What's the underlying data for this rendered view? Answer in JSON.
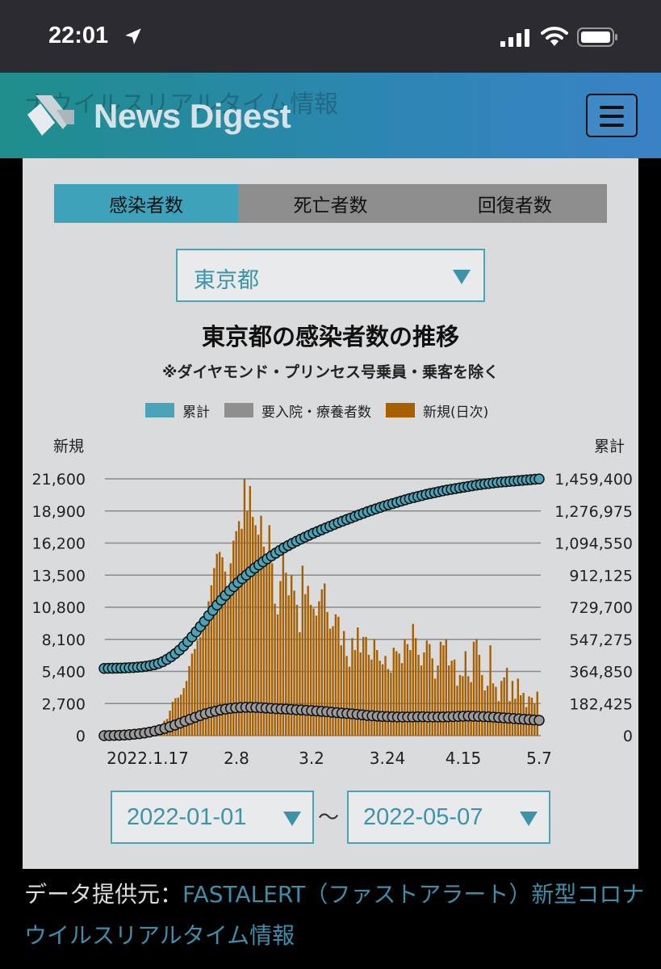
{
  "status_bar": {
    "time": "22:01",
    "icons": [
      "location-arrow-icon",
      "cellular-signal-icon",
      "wifi-icon",
      "battery-icon"
    ]
  },
  "header": {
    "ghost_text": "ナウイルスリアルタイム情報",
    "logo_text": "News Digest",
    "menu_icon": "hamburger-menu-icon"
  },
  "tabs": [
    {
      "label": "感染者数",
      "active": true
    },
    {
      "label": "死亡者数",
      "active": false
    },
    {
      "label": "回復者数",
      "active": false
    }
  ],
  "prefecture_select": {
    "value": "東京都"
  },
  "chart_header": {
    "title": "東京都の感染者数の推移",
    "subtitle": "※ダイヤモンド・プリンセス号乗員・乗客を除く"
  },
  "legend": [
    {
      "label": "累計",
      "color": "#4aa3b6"
    },
    {
      "label": "要入院・療養者数",
      "color": "#8f8f8f"
    },
    {
      "label": "新規(日次)",
      "color": "#a85f00"
    }
  ],
  "axis": {
    "left_title": "新規",
    "right_title": "累計",
    "left_ticks": [
      "0",
      "2,700",
      "5,400",
      "8,100",
      "10,800",
      "13,500",
      "16,200",
      "18,900",
      "21,600"
    ],
    "right_ticks": [
      "0",
      "182,425",
      "364,850",
      "547,275",
      "729,700",
      "912,125",
      "1,094,550",
      "1,276,975",
      "1,459,400"
    ],
    "x_ticks": [
      "2022.1.17",
      "2.8",
      "3.2",
      "3.24",
      "4.15",
      "5.7"
    ]
  },
  "chart_data": {
    "type": "bar",
    "title": "東京都の感染者数の推移",
    "subtitle": "※ダイヤモンド・プリンセス号乗員・乗客を除く",
    "x_range": [
      "2022-01-01",
      "2022-05-07"
    ],
    "x_tick_labels": [
      "2022.1.17",
      "2.8",
      "3.2",
      "3.24",
      "4.15",
      "5.7"
    ],
    "ylabel_left": "新規",
    "ylabel_right": "累計",
    "ylim_left": [
      0,
      21600
    ],
    "ylim_right": [
      0,
      1459400
    ],
    "grid": true,
    "legend_position": "top",
    "series": [
      {
        "name": "新規(日次)",
        "axis": "left",
        "type": "bar",
        "values": [
          80,
          90,
          90,
          120,
          100,
          150,
          190,
          380,
          410,
          400,
          560,
          650,
          800,
          1250,
          1400,
          2100,
          2850,
          3150,
          3200,
          3450,
          4000,
          4600,
          5850,
          6900,
          7300,
          8000,
          8300,
          9800,
          9700,
          11300,
          12650,
          14100,
          15300,
          15450,
          15000,
          13800,
          12000,
          14500,
          16400,
          17200,
          18050,
          17400,
          21600,
          18900,
          21000,
          18400,
          17700,
          16900,
          18500,
          15900,
          14600,
          17700,
          14500,
          11100,
          10200,
          13000,
          16100,
          13700,
          11800,
          13500,
          12200,
          11000,
          8700,
          14300,
          11900,
          12600,
          11000,
          10700,
          10100,
          11300,
          12300,
          12800,
          10400,
          9000,
          9200,
          10200,
          10000,
          7600,
          8800,
          6700,
          5800,
          8200,
          7200,
          9100,
          7000,
          8300,
          8300,
          6800,
          6400,
          8100,
          7200,
          6300,
          6000,
          6700,
          5600,
          5300,
          7400,
          7100,
          6900,
          6100,
          8100,
          7700,
          7200,
          9400,
          8200,
          6800,
          5900,
          7000,
          8000,
          7700,
          6500,
          4800,
          5900,
          7900,
          7600,
          8100,
          5900,
          6300,
          6400,
          4200,
          5100,
          5000,
          7100,
          5000,
          4500,
          7900,
          8100,
          6800,
          5100,
          3800,
          4200,
          7600,
          4400,
          4100,
          2900,
          4600,
          4900,
          5700,
          2900,
          4600,
          3100,
          4800,
          3400,
          3600,
          2400,
          3300,
          3200,
          2700,
          3700
        ]
      },
      {
        "name": "累計",
        "axis": "right",
        "type": "line",
        "values": [
          382000,
          382500,
          383000,
          383500,
          384000,
          385000,
          386000,
          387500,
          389000,
          391000,
          394000,
          398000,
          403000,
          410000,
          420000,
          433000,
          448000,
          466000,
          486000,
          509000,
          534000,
          561000,
          590000,
          620000,
          650000,
          682000,
          712000,
          742000,
          770000,
          797000,
          823000,
          847000,
          870000,
          892000,
          912000,
          932000,
          952000,
          970000,
          988000,
          1005000,
          1021000,
          1037000,
          1052000,
          1067000,
          1080000,
          1093000,
          1105000,
          1117000,
          1128000,
          1139000,
          1150000,
          1160000,
          1170000,
          1180000,
          1190000,
          1200000,
          1210000,
          1219000,
          1228000,
          1237000,
          1246000,
          1255000,
          1264000,
          1273000,
          1281000,
          1289000,
          1297000,
          1305000,
          1312000,
          1319000,
          1326000,
          1333000,
          1340000,
          1347000,
          1353000,
          1359000,
          1365000,
          1371000,
          1376000,
          1381000,
          1386000,
          1391000,
          1396000,
          1400000,
          1404000,
          1408000,
          1412000,
          1416000,
          1420000,
          1424000,
          1427000,
          1430000,
          1433000,
          1436000,
          1439000,
          1441000,
          1443000,
          1445000,
          1447000,
          1449000,
          1451000,
          1453000,
          1455000,
          1457000,
          1459000
        ]
      },
      {
        "name": "要入院・療養者数",
        "axis": "right",
        "type": "line",
        "values": [
          0,
          500,
          1000,
          2000,
          3500,
          5500,
          8000,
          11000,
          15000,
          20000,
          26000,
          33000,
          41000,
          50000,
          60000,
          71000,
          82000,
          93000,
          104000,
          114000,
          124000,
          132000,
          139000,
          146000,
          151000,
          155000,
          158000,
          160000,
          161000,
          161000,
          160000,
          159000,
          157000,
          155000,
          153000,
          152000,
          151000,
          149000,
          147000,
          146000,
          144000,
          142000,
          140000,
          138000,
          136000,
          133000,
          131000,
          128000,
          126000,
          124000,
          121000,
          118000,
          115000,
          113000,
          111000,
          109000,
          108000,
          107000,
          106000,
          106000,
          106000,
          106000,
          107000,
          107000,
          106000,
          106000,
          106000,
          106000,
          107000,
          108000,
          109000,
          110000,
          111000,
          110000,
          109000,
          108000,
          107000,
          105000,
          103000,
          101000,
          99000,
          97000,
          95000,
          93000,
          91000,
          89000,
          87000
        ]
      }
    ]
  },
  "date_range": {
    "from": "2022-01-01",
    "to": "2022-05-07",
    "separator": "〜"
  },
  "source": {
    "label": "データ提供元：",
    "link_text": "FASTALERT（ファストアラート）新型コロナウイルスリアルタイム情報"
  }
}
